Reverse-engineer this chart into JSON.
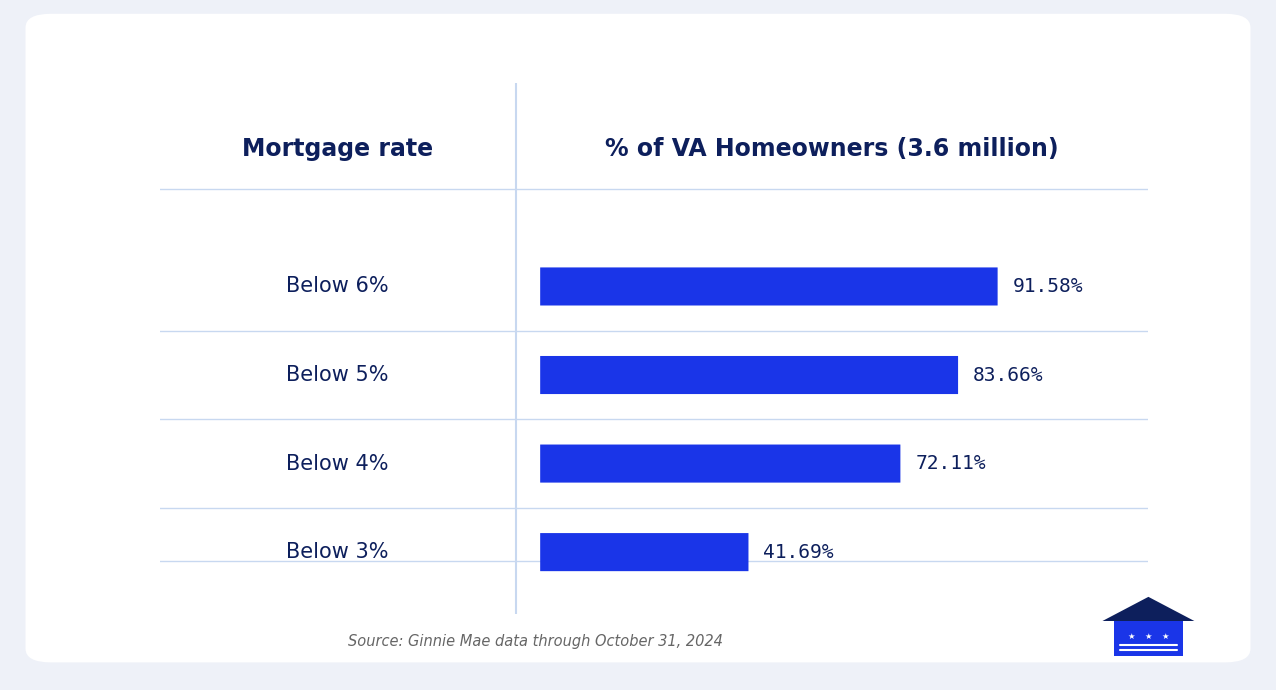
{
  "categories": [
    "Below 6%",
    "Below 5%",
    "Below 4%",
    "Below 3%"
  ],
  "values": [
    91.58,
    83.66,
    72.11,
    41.69
  ],
  "value_labels": [
    "91.58%",
    "83.66%",
    "72.11%",
    "41.69%"
  ],
  "bar_color": "#1a35e8",
  "background_color": "#eef1f8",
  "card_color": "#ffffff",
  "header_left": "Mortgage rate",
  "header_right": "% of VA Homeowners (3.6 million)",
  "header_color": "#0d1f5c",
  "label_color": "#0d1f5c",
  "value_color": "#0d1f5c",
  "source_text": "Source: Ginnie Mae data through October 31, 2024",
  "source_color": "#666666",
  "divider_color": "#c8d8f0",
  "bar_height": 0.42
}
